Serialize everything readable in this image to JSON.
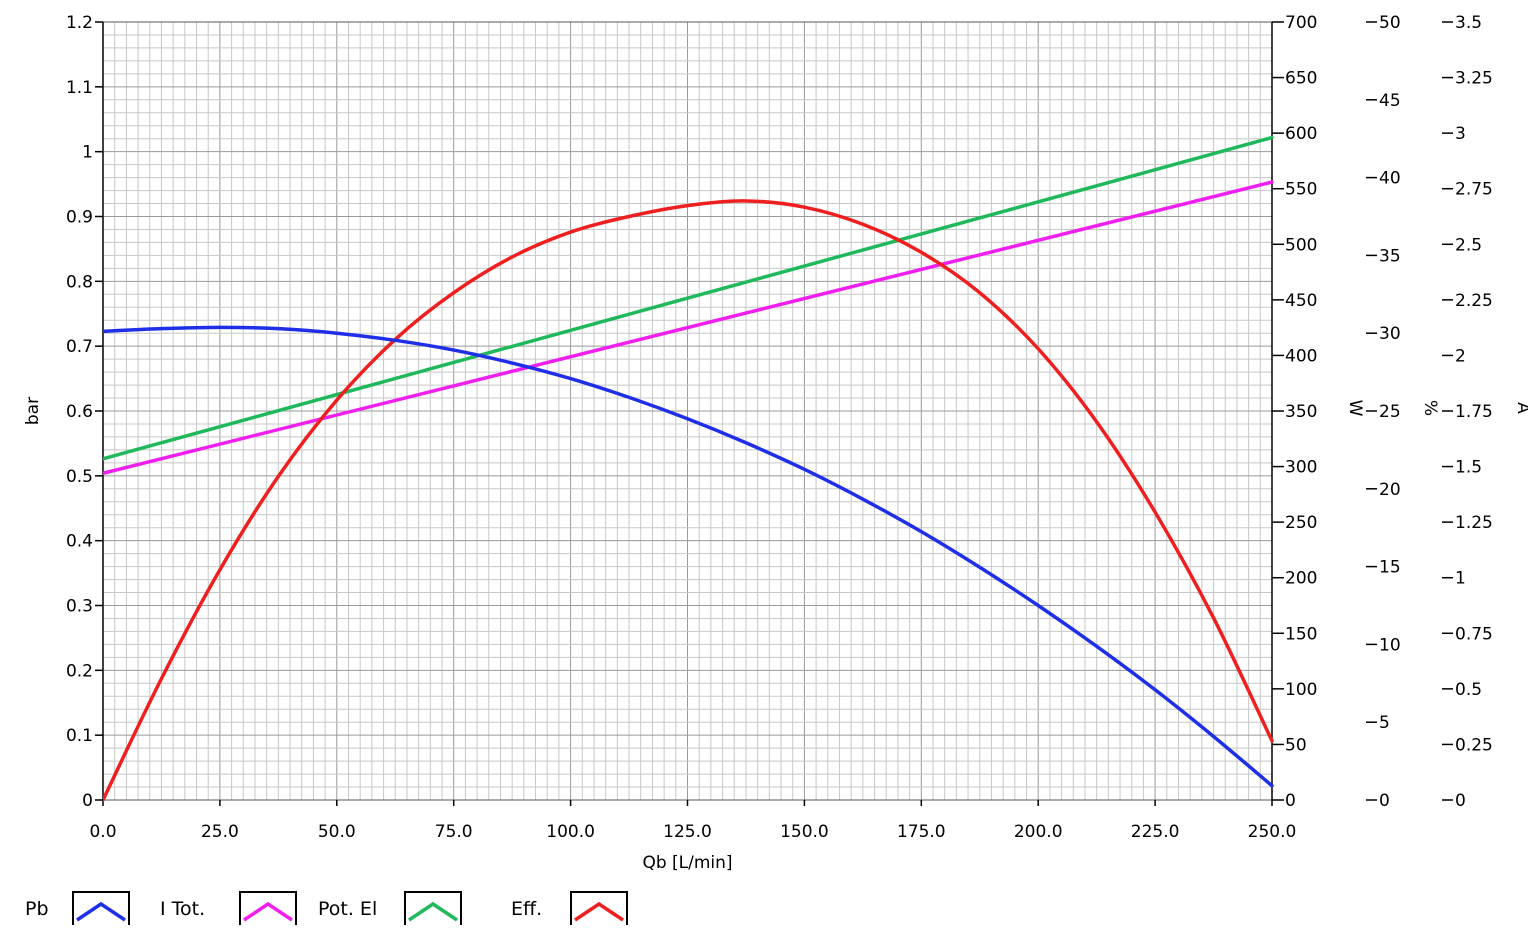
{
  "chart_data": {
    "type": "line",
    "xlabel": "Qb [L/min]",
    "xlim": [
      0,
      250
    ],
    "x_ticks": [
      0,
      25,
      50,
      75,
      100,
      125,
      150,
      175,
      200,
      225,
      250
    ],
    "x_tick_labels": [
      "0.0",
      "25.0",
      "50.0",
      "75.0",
      "100.0",
      "125.0",
      "150.0",
      "175.0",
      "200.0",
      "225.0",
      "250.0"
    ],
    "grid": true,
    "y_axes": [
      {
        "id": "bar",
        "label": "bar",
        "range": [
          0,
          1.2
        ],
        "ticks": [
          0,
          0.1,
          0.2,
          0.3,
          0.4,
          0.5,
          0.6,
          0.7,
          0.8,
          0.9,
          1,
          1.1,
          1.2
        ],
        "tick_labels": [
          "0",
          "0.1",
          "0.2",
          "0.3",
          "0.4",
          "0.5",
          "0.6",
          "0.7",
          "0.8",
          "0.9",
          "1",
          "1.1",
          "1.2"
        ]
      },
      {
        "id": "W",
        "label": "W",
        "range": [
          0,
          700
        ],
        "ticks": [
          0,
          50,
          100,
          150,
          200,
          250,
          300,
          350,
          400,
          450,
          500,
          550,
          600,
          650,
          700
        ],
        "tick_labels": [
          "0",
          "50",
          "100",
          "150",
          "200",
          "250",
          "300",
          "350",
          "400",
          "450",
          "500",
          "550",
          "600",
          "650",
          "700"
        ]
      },
      {
        "id": "pct",
        "label": "%",
        "range": [
          0,
          50
        ],
        "ticks": [
          0,
          5,
          10,
          15,
          20,
          25,
          30,
          35,
          40,
          45,
          50
        ],
        "tick_labels": [
          "0",
          "5",
          "10",
          "15",
          "20",
          "25",
          "30",
          "35",
          "40",
          "45",
          "50"
        ]
      },
      {
        "id": "A",
        "label": "A",
        "range": [
          0,
          3.5
        ],
        "ticks": [
          0,
          0.25,
          0.5,
          0.75,
          1,
          1.25,
          1.5,
          1.75,
          2,
          2.25,
          2.5,
          2.75,
          3,
          3.25,
          3.5
        ],
        "tick_labels": [
          "0",
          "0.25",
          "0.5",
          "0.75",
          "1",
          "1.25",
          "1.5",
          "1.75",
          "2",
          "2.25",
          "2.5",
          "2.75",
          "3",
          "3.25",
          "3.5"
        ]
      }
    ],
    "series": [
      {
        "name": "Pb",
        "color": "#1f2fe8",
        "axis": "bar",
        "x": [
          0,
          12.5,
          25,
          37.5,
          50,
          62.5,
          75,
          87.5,
          100,
          112.5,
          125,
          137.5,
          150,
          162.5,
          175,
          187.5,
          200,
          212.5,
          225,
          237.5,
          250
        ],
        "y": [
          0.723,
          0.727,
          0.729,
          0.727,
          0.72,
          0.709,
          0.694,
          0.674,
          0.65,
          0.621,
          0.588,
          0.551,
          0.51,
          0.464,
          0.414,
          0.359,
          0.3,
          0.237,
          0.17,
          0.098,
          0.022
        ]
      },
      {
        "name": "I Tot.",
        "color": "#f01ff0",
        "axis": "A",
        "x": [
          0,
          250
        ],
        "y": [
          1.47,
          2.78
        ]
      },
      {
        "name": "Pot. El",
        "color": "#1fb85a",
        "axis": "W",
        "x": [
          0,
          250
        ],
        "y": [
          307,
          596
        ]
      },
      {
        "name": "Eff.",
        "color": "#f01f1f",
        "axis": "pct",
        "x": [
          0,
          12.5,
          25,
          37.5,
          50,
          62.5,
          75,
          87.5,
          100,
          112.5,
          125,
          137.5,
          150,
          162.5,
          175,
          187.5,
          200,
          212.5,
          225,
          237.5,
          250
        ],
        "y": [
          0.0,
          7.8,
          14.8,
          20.8,
          25.7,
          29.6,
          32.6,
          34.9,
          36.5,
          37.5,
          38.2,
          38.5,
          38.1,
          37.0,
          35.2,
          32.6,
          29.0,
          24.3,
          18.5,
          11.7,
          3.8
        ]
      }
    ]
  }
}
